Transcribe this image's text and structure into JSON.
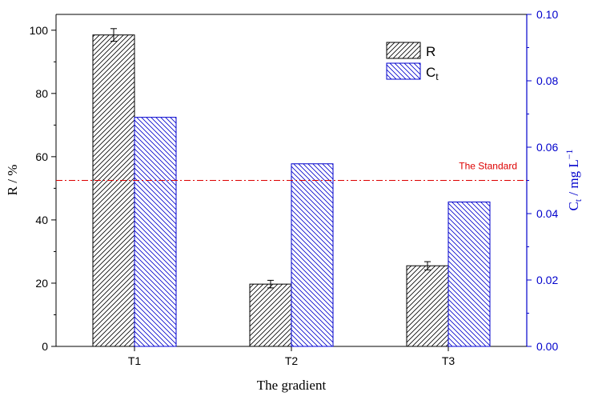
{
  "chart_data": {
    "type": "bar",
    "categories": [
      "T1",
      "T2",
      "T3"
    ],
    "xlabel": "The gradient",
    "ylabel_left": "R / %",
    "ylabel_right": {
      "main": "C",
      "sub": "t",
      "rest": " / mg L",
      "sup": "−1"
    },
    "ylim_left": [
      0,
      105
    ],
    "ylim_right": [
      0,
      0.1
    ],
    "yticks_left": [
      "0",
      "20",
      "40",
      "60",
      "80",
      "100"
    ],
    "yticks_right": [
      "0.00",
      "0.02",
      "0.04",
      "0.06",
      "0.08",
      "0.10"
    ],
    "series": [
      {
        "name": "R",
        "axis": "left",
        "values": [
          98.5,
          19.7,
          25.5
        ],
        "errors": [
          2.0,
          1.2,
          1.3
        ],
        "color": "#000000",
        "hatch": "diagonal-up"
      },
      {
        "name": "C",
        "name_sub": "t",
        "axis": "right",
        "values": [
          0.069,
          0.055,
          0.0435
        ],
        "color": "#0000cc",
        "hatch": "diagonal-down"
      }
    ],
    "reference_line": {
      "label": "The Standard",
      "value": 0.05,
      "axis": "right",
      "color": "#dd0000",
      "style": "dash-dot"
    },
    "legend_position": "top-right",
    "grid": false
  }
}
